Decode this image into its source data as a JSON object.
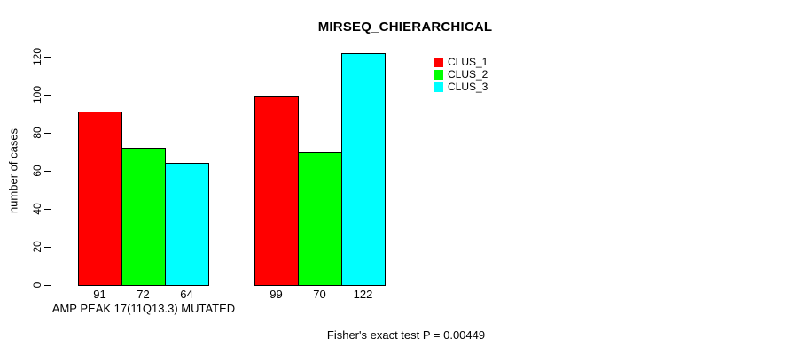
{
  "chart_data": {
    "type": "bar",
    "title": "MIRSEQ_CHIERARCHICAL",
    "ylabel": "number of cases",
    "group_label": "AMP PEAK 17(11Q13.3) MUTATED",
    "annotation": "Fisher's exact test P = 0.00449",
    "ylim": [
      0,
      120
    ],
    "yticks": [
      0,
      20,
      40,
      60,
      80,
      100,
      120
    ],
    "groups": [
      "AMP PEAK 17(11Q13.3) MUTATED",
      ""
    ],
    "series": [
      {
        "name": "CLUS_1",
        "color": "#ff0000",
        "values": [
          91,
          99
        ]
      },
      {
        "name": "CLUS_2",
        "color": "#00ff00",
        "values": [
          72,
          70
        ]
      },
      {
        "name": "CLUS_3",
        "color": "#00ffff",
        "values": [
          64,
          122
        ]
      }
    ],
    "show_bar_value_labels": true,
    "legend": [
      "CLUS_1",
      "CLUS_2",
      "CLUS_3"
    ],
    "legend_position": "top-right",
    "grid": false,
    "bar_border_color": "#000000",
    "background_color": "#ffffff"
  }
}
